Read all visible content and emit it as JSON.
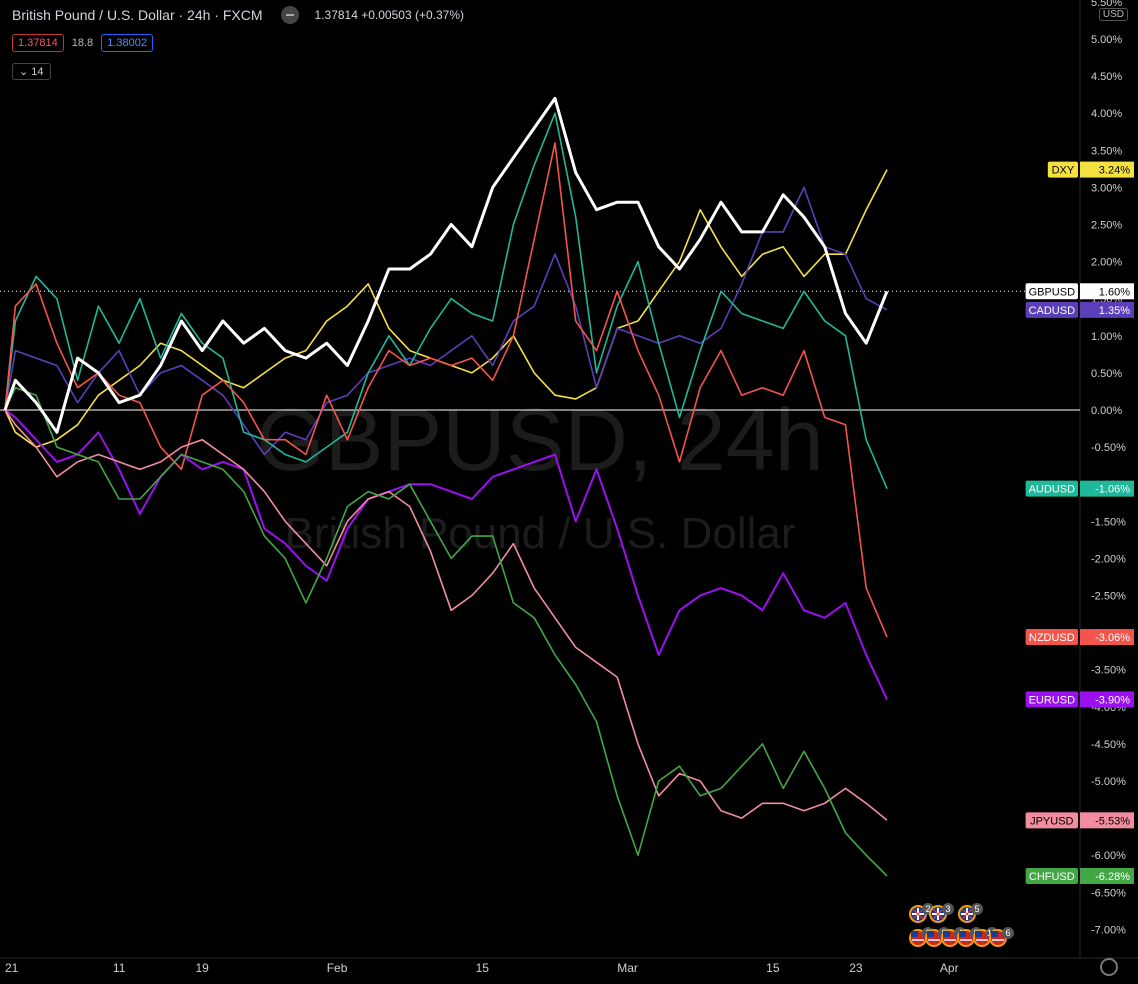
{
  "header": {
    "symbol_title": "British Pound / U.S. Dollar · 24h · FXCM",
    "quote": "1.37814 +0.00503 (+0.37%)",
    "bid": "1.37814",
    "volume": "18.8",
    "ask": "1.38002",
    "collapse_count": "14",
    "currency": "USD"
  },
  "watermark": {
    "line1": "GBPUSD, 24h",
    "line2": "British Pound / U.S. Dollar"
  },
  "colors": {
    "background": "#000000",
    "axis_text": "#cfcfcf",
    "zero_line": "#ffffff"
  },
  "chart_data": {
    "type": "line",
    "x_ticks": [
      {
        "label": "21",
        "day": 0
      },
      {
        "label": "11",
        "day": 11
      },
      {
        "label": "19",
        "day": 19
      },
      {
        "label": "Feb",
        "day": 32
      },
      {
        "label": "15",
        "day": 46
      },
      {
        "label": "Mar",
        "day": 60
      },
      {
        "label": "15",
        "day": 74
      },
      {
        "label": "23",
        "day": 82
      },
      {
        "label": "Apr",
        "day": 91
      }
    ],
    "x_range_days": [
      0,
      103.6
    ],
    "ylim": [
      -7.6,
      5.5
    ],
    "y_ticks": [
      5.5,
      5.0,
      4.5,
      4.0,
      3.5,
      3.0,
      2.5,
      2.0,
      1.5,
      1.0,
      0.5,
      0.0,
      -0.5,
      -1.0,
      -1.5,
      -2.0,
      -2.5,
      -3.0,
      -3.5,
      -4.0,
      -4.5,
      -5.0,
      -5.5,
      -6.0,
      -6.5,
      -7.0
    ],
    "y_tick_labels": [
      "5.50%",
      "5.00%",
      "4.50%",
      "4.00%",
      "3.50%",
      "3.00%",
      "2.50%",
      "2.00%",
      "1.50%",
      "1.00%",
      "0.50%",
      "0.00%",
      "-0.50%",
      "-1.00%",
      "-1.50%",
      "-2.00%",
      "-2.50%",
      "-3.00%",
      "-3.50%",
      "-4.00%",
      "-4.50%",
      "-5.00%",
      "-5.50%",
      "-6.00%",
      "-6.50%",
      "-7.00%"
    ],
    "series": [
      {
        "name": "DXY",
        "label": "3.24%",
        "color": "#f5e042",
        "width": 1.6,
        "x": [
          0,
          1,
          3,
          5,
          7,
          9,
          11,
          13,
          15,
          17,
          19,
          21,
          23,
          25,
          27,
          29,
          31,
          33,
          35,
          37,
          39,
          41,
          43,
          45,
          47,
          49,
          51,
          53,
          55,
          57,
          59,
          61,
          63,
          65,
          67,
          69,
          71,
          73,
          75,
          77,
          79,
          81,
          83,
          85
        ],
        "y": [
          0,
          -0.3,
          -0.5,
          -0.4,
          -0.2,
          0.2,
          0.4,
          0.6,
          0.9,
          0.8,
          0.6,
          0.4,
          0.3,
          0.5,
          0.7,
          0.8,
          1.2,
          1.4,
          1.7,
          1.1,
          0.8,
          0.7,
          0.6,
          0.5,
          0.7,
          1.0,
          0.5,
          0.2,
          0.15,
          0.3,
          1.1,
          1.2,
          1.6,
          2.0,
          2.7,
          2.2,
          1.8,
          2.1,
          2.2,
          1.8,
          2.1,
          2.1,
          2.7,
          3.24
        ]
      },
      {
        "name": "GBPUSD",
        "label": "1.60%",
        "color": "#ffffff",
        "width": 3,
        "x": [
          0,
          1,
          3,
          5,
          7,
          9,
          11,
          13,
          15,
          17,
          19,
          21,
          23,
          25,
          27,
          29,
          31,
          33,
          35,
          37,
          39,
          41,
          43,
          45,
          47,
          49,
          51,
          53,
          55,
          57,
          59,
          61,
          63,
          65,
          67,
          69,
          71,
          73,
          75,
          77,
          79,
          81,
          83,
          85
        ],
        "y": [
          0,
          0.4,
          0.1,
          -0.3,
          0.7,
          0.5,
          0.1,
          0.2,
          0.6,
          1.2,
          0.8,
          1.2,
          0.9,
          1.1,
          0.8,
          0.7,
          0.9,
          0.6,
          1.2,
          1.9,
          1.9,
          2.1,
          2.5,
          2.2,
          3.0,
          3.4,
          3.8,
          4.2,
          3.2,
          2.7,
          2.8,
          2.8,
          2.2,
          1.9,
          2.3,
          2.8,
          2.4,
          2.4,
          2.9,
          2.6,
          2.2,
          1.3,
          0.9,
          1.6
        ]
      },
      {
        "name": "CADUSD",
        "label": "1.35%",
        "color": "#5b3fb8",
        "width": 1.6,
        "x": [
          0,
          1,
          3,
          5,
          7,
          9,
          11,
          13,
          15,
          17,
          19,
          21,
          23,
          25,
          27,
          29,
          31,
          33,
          35,
          37,
          39,
          41,
          43,
          45,
          47,
          49,
          51,
          53,
          55,
          57,
          59,
          61,
          63,
          65,
          67,
          69,
          71,
          73,
          75,
          77,
          79,
          81,
          83,
          85
        ],
        "y": [
          0,
          0.8,
          0.7,
          0.6,
          0.1,
          0.5,
          0.8,
          0.2,
          0.5,
          0.6,
          0.4,
          0.2,
          -0.2,
          -0.6,
          -0.3,
          -0.4,
          0.1,
          0.2,
          0.5,
          0.6,
          0.7,
          0.6,
          0.8,
          1.0,
          0.6,
          1.2,
          1.4,
          2.1,
          1.4,
          0.3,
          1.1,
          1.0,
          0.9,
          1.0,
          0.9,
          1.1,
          1.7,
          2.4,
          2.4,
          3.0,
          2.2,
          2.1,
          1.5,
          1.35
        ]
      },
      {
        "name": "AUDUSD",
        "label": "-1.06%",
        "color": "#1fb89a",
        "width": 1.6,
        "x": [
          0,
          1,
          3,
          5,
          7,
          9,
          11,
          13,
          15,
          17,
          19,
          21,
          23,
          25,
          27,
          29,
          31,
          33,
          35,
          37,
          39,
          41,
          43,
          45,
          47,
          49,
          51,
          53,
          55,
          57,
          59,
          61,
          63,
          65,
          67,
          69,
          71,
          73,
          75,
          77,
          79,
          81,
          83,
          85
        ],
        "y": [
          0,
          1.2,
          1.8,
          1.5,
          0.4,
          1.4,
          0.9,
          1.5,
          0.7,
          1.3,
          0.9,
          0.7,
          -0.3,
          -0.4,
          -0.6,
          -0.7,
          -0.5,
          -0.3,
          0.5,
          1.0,
          0.6,
          1.1,
          1.5,
          1.3,
          1.2,
          2.5,
          3.3,
          4.0,
          2.6,
          0.5,
          1.4,
          2.0,
          0.9,
          -0.1,
          0.8,
          1.6,
          1.3,
          1.2,
          1.1,
          1.6,
          1.2,
          1.0,
          -0.4,
          -1.06
        ]
      },
      {
        "name": "NZDUSD",
        "label": "-3.06%",
        "color": "#f2554c",
        "width": 1.6,
        "x": [
          0,
          1,
          3,
          5,
          7,
          9,
          11,
          13,
          15,
          17,
          19,
          21,
          23,
          25,
          27,
          29,
          31,
          33,
          35,
          37,
          39,
          41,
          43,
          45,
          47,
          49,
          51,
          53,
          55,
          57,
          59,
          61,
          63,
          65,
          67,
          69,
          71,
          73,
          75,
          77,
          79,
          81,
          83,
          85
        ],
        "y": [
          0,
          1.4,
          1.7,
          0.9,
          0.3,
          0.5,
          0.2,
          0.1,
          -0.5,
          -0.8,
          0.2,
          0.4,
          0.1,
          -0.4,
          -0.4,
          -0.6,
          0.2,
          -0.4,
          0.3,
          0.8,
          0.6,
          0.7,
          0.6,
          0.7,
          0.4,
          1.0,
          2.3,
          3.6,
          1.2,
          0.8,
          1.6,
          0.8,
          0.2,
          -0.7,
          0.3,
          0.8,
          0.2,
          0.3,
          0.2,
          0.8,
          -0.1,
          -0.2,
          -2.4,
          -3.06
        ]
      },
      {
        "name": "EURUSD",
        "label": "-3.90%",
        "color": "#9b10ef",
        "width": 2,
        "x": [
          0,
          1,
          3,
          5,
          7,
          9,
          11,
          13,
          15,
          17,
          19,
          21,
          23,
          25,
          27,
          29,
          31,
          33,
          35,
          37,
          39,
          41,
          43,
          45,
          47,
          49,
          51,
          53,
          55,
          57,
          59,
          61,
          63,
          65,
          67,
          69,
          71,
          73,
          75,
          77,
          79,
          81,
          83,
          85
        ],
        "y": [
          0,
          -0.1,
          -0.4,
          -0.7,
          -0.6,
          -0.3,
          -0.8,
          -1.4,
          -0.9,
          -0.6,
          -0.8,
          -0.7,
          -0.8,
          -1.6,
          -1.8,
          -2.1,
          -2.3,
          -1.6,
          -1.2,
          -1.1,
          -1.0,
          -1.0,
          -1.1,
          -1.2,
          -0.9,
          -0.8,
          -0.7,
          -0.6,
          -1.5,
          -0.8,
          -1.6,
          -2.5,
          -3.3,
          -2.7,
          -2.5,
          -2.4,
          -2.5,
          -2.7,
          -2.2,
          -2.7,
          -2.8,
          -2.6,
          -3.3,
          -3.9
        ]
      },
      {
        "name": "JPYUSD",
        "label": "-5.53%",
        "color": "#f28da0",
        "width": 1.6,
        "x": [
          0,
          1,
          3,
          5,
          7,
          9,
          11,
          13,
          15,
          17,
          19,
          21,
          23,
          25,
          27,
          29,
          31,
          33,
          35,
          37,
          39,
          41,
          43,
          45,
          47,
          49,
          51,
          53,
          55,
          57,
          59,
          61,
          63,
          65,
          67,
          69,
          71,
          73,
          75,
          77,
          79,
          81,
          83,
          85
        ],
        "y": [
          0,
          -0.2,
          -0.5,
          -0.9,
          -0.7,
          -0.6,
          -0.7,
          -0.8,
          -0.7,
          -0.5,
          -0.4,
          -0.6,
          -0.8,
          -1.1,
          -1.5,
          -1.8,
          -2.1,
          -1.5,
          -1.2,
          -1.1,
          -1.3,
          -1.9,
          -2.7,
          -2.5,
          -2.2,
          -1.8,
          -2.4,
          -2.8,
          -3.2,
          -3.4,
          -3.6,
          -4.5,
          -5.2,
          -4.9,
          -5.0,
          -5.4,
          -5.5,
          -5.3,
          -5.3,
          -5.4,
          -5.3,
          -5.1,
          -5.3,
          -5.53
        ]
      },
      {
        "name": "CHFUSD",
        "label": "-6.28%",
        "color": "#43a745",
        "width": 1.6,
        "x": [
          0,
          1,
          3,
          5,
          7,
          9,
          11,
          13,
          15,
          17,
          19,
          21,
          23,
          25,
          27,
          29,
          31,
          33,
          35,
          37,
          39,
          41,
          43,
          45,
          47,
          49,
          51,
          53,
          55,
          57,
          59,
          61,
          63,
          65,
          67,
          69,
          71,
          73,
          75,
          77,
          79,
          81,
          83,
          85
        ],
        "y": [
          0,
          0.3,
          0.2,
          -0.5,
          -0.6,
          -0.7,
          -1.2,
          -1.2,
          -0.9,
          -0.6,
          -0.7,
          -0.8,
          -1.1,
          -1.7,
          -2.0,
          -2.6,
          -2.0,
          -1.3,
          -1.1,
          -1.2,
          -1.0,
          -1.5,
          -2.0,
          -1.7,
          -1.7,
          -2.6,
          -2.8,
          -3.3,
          -3.7,
          -4.2,
          -5.2,
          -6.0,
          -5.0,
          -4.8,
          -5.2,
          -5.1,
          -4.8,
          -4.5,
          -5.1,
          -4.6,
          -5.1,
          -5.7,
          -6.0,
          -6.28
        ]
      }
    ],
    "zero_line": 0,
    "last_price_line": 1.6,
    "grid": false,
    "legend": "right-axis-labels"
  },
  "events": {
    "row1": [
      {
        "flag": "uk",
        "count": "2"
      },
      {
        "flag": "uk",
        "count": "3"
      },
      {
        "flag": "uk",
        "count": "5"
      }
    ],
    "row2": [
      {
        "flag": "us",
        "count": "3"
      },
      {
        "flag": "us",
        "count": "8"
      },
      {
        "flag": "us",
        "count": "4"
      },
      {
        "flag": "us",
        "count": "8"
      },
      {
        "flag": "us",
        "count": "12"
      },
      {
        "flag": "us",
        "count": "6"
      }
    ]
  }
}
